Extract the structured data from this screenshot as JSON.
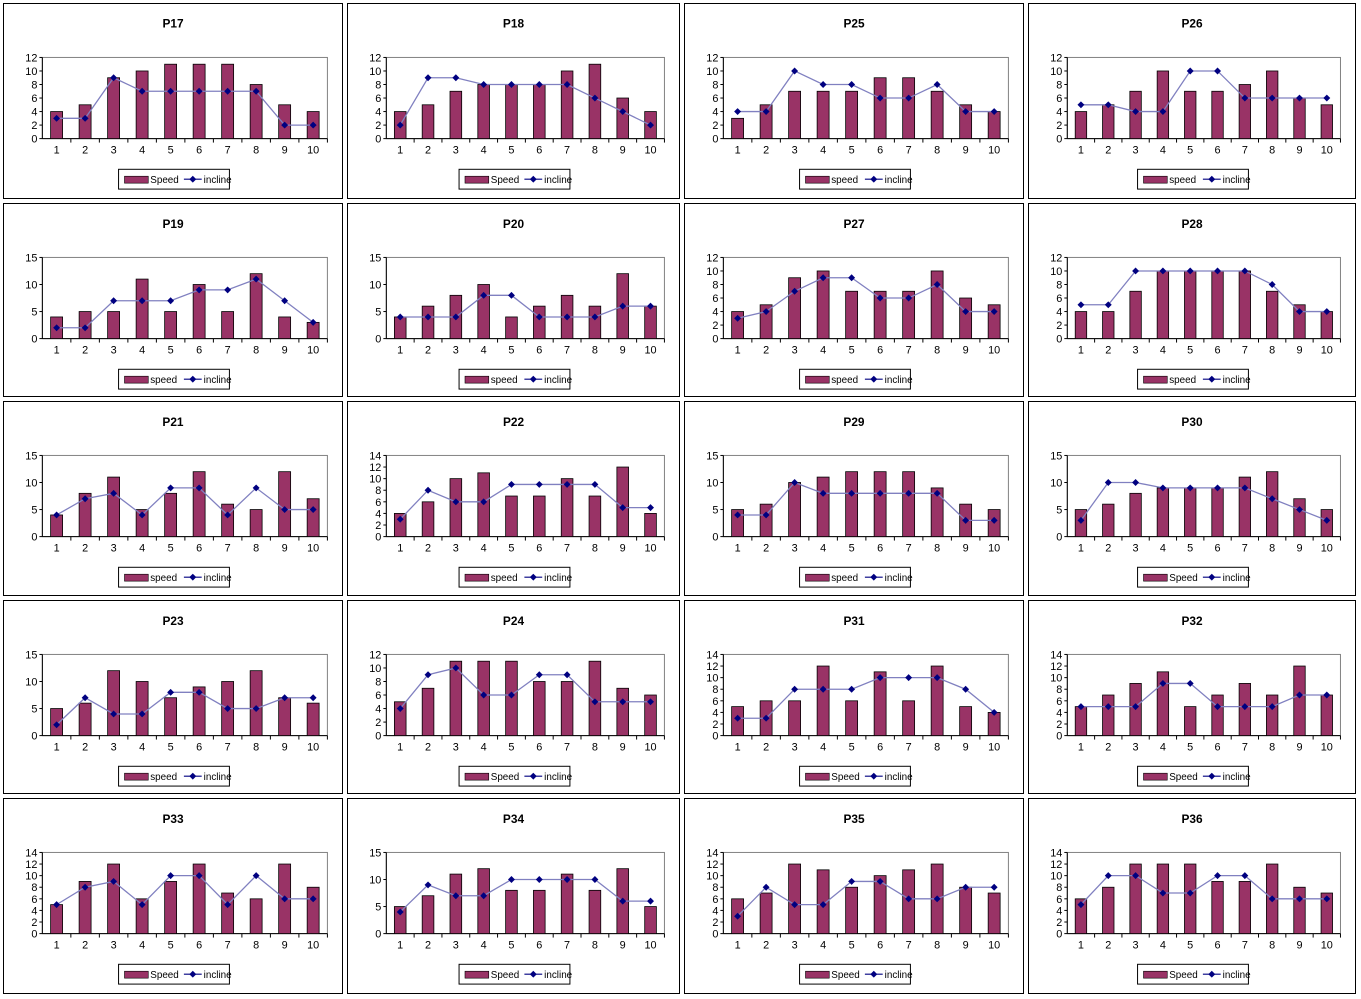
{
  "colors": {
    "speed": "#993366",
    "incline": "#000080",
    "incline_line": "#8080c0"
  },
  "chart_data": [
    {
      "type": "bar+line",
      "title": "P17",
      "categories": [
        1,
        2,
        3,
        4,
        5,
        6,
        7,
        8,
        9,
        10
      ],
      "ylim": [
        0,
        12
      ],
      "yticks": [
        0,
        2,
        4,
        6,
        8,
        10,
        12
      ],
      "legend": [
        "Speed",
        "incline"
      ],
      "series": [
        {
          "name": "Speed",
          "values": [
            4,
            5,
            9,
            10,
            11,
            11,
            11,
            8,
            5,
            4
          ]
        },
        {
          "name": "incline",
          "values": [
            3,
            3,
            9,
            7,
            7,
            7,
            7,
            7,
            2,
            2
          ]
        }
      ]
    },
    {
      "type": "bar+line",
      "title": "P18",
      "categories": [
        1,
        2,
        3,
        4,
        5,
        6,
        7,
        8,
        9,
        10
      ],
      "ylim": [
        0,
        12
      ],
      "yticks": [
        0,
        2,
        4,
        6,
        8,
        10,
        12
      ],
      "legend": [
        "Speed",
        "incline"
      ],
      "series": [
        {
          "name": "Speed",
          "values": [
            4,
            5,
            7,
            8,
            8,
            8,
            10,
            11,
            6,
            4
          ]
        },
        {
          "name": "incline",
          "values": [
            2,
            9,
            9,
            8,
            8,
            8,
            8,
            6,
            4,
            2
          ]
        }
      ]
    },
    {
      "type": "bar+line",
      "title": "P25",
      "categories": [
        1,
        2,
        3,
        4,
        5,
        6,
        7,
        8,
        9,
        10
      ],
      "ylim": [
        0,
        12
      ],
      "yticks": [
        0,
        2,
        4,
        6,
        8,
        10,
        12
      ],
      "legend": [
        "speed",
        "incline"
      ],
      "series": [
        {
          "name": "speed",
          "values": [
            3,
            5,
            7,
            7,
            7,
            9,
            9,
            7,
            5,
            4
          ]
        },
        {
          "name": "incline",
          "values": [
            4,
            4,
            10,
            8,
            8,
            6,
            6,
            8,
            4,
            4
          ]
        }
      ]
    },
    {
      "type": "bar+line",
      "title": "P26",
      "categories": [
        1,
        2,
        3,
        4,
        5,
        6,
        7,
        8,
        9,
        10
      ],
      "ylim": [
        0,
        12
      ],
      "yticks": [
        0,
        2,
        4,
        6,
        8,
        10,
        12
      ],
      "legend": [
        "speed",
        "incline"
      ],
      "series": [
        {
          "name": "speed",
          "values": [
            4,
            5,
            7,
            10,
            7,
            7,
            8,
            10,
            6,
            5
          ]
        },
        {
          "name": "incline",
          "values": [
            5,
            5,
            4,
            4,
            10,
            10,
            6,
            6,
            6,
            6
          ]
        }
      ]
    },
    {
      "type": "bar+line",
      "title": "P19",
      "categories": [
        1,
        2,
        3,
        4,
        5,
        6,
        7,
        8,
        9,
        10
      ],
      "ylim": [
        0,
        15
      ],
      "yticks": [
        0,
        5,
        10,
        15
      ],
      "legend": [
        "speed",
        "incline"
      ],
      "series": [
        {
          "name": "speed",
          "values": [
            4,
            5,
            5,
            11,
            5,
            10,
            5,
            12,
            4,
            3
          ]
        },
        {
          "name": "incline",
          "values": [
            2,
            2,
            7,
            7,
            7,
            9,
            9,
            11,
            7,
            3
          ]
        }
      ]
    },
    {
      "type": "bar+line",
      "title": "P20",
      "categories": [
        1,
        2,
        3,
        4,
        5,
        6,
        7,
        8,
        9,
        10
      ],
      "ylim": [
        0,
        15
      ],
      "yticks": [
        0,
        5,
        10,
        15
      ],
      "legend": [
        "speed",
        "incline"
      ],
      "series": [
        {
          "name": "speed",
          "values": [
            4,
            6,
            8,
            10,
            4,
            6,
            8,
            6,
            12,
            6
          ]
        },
        {
          "name": "incline",
          "values": [
            4,
            4,
            4,
            8,
            8,
            4,
            4,
            4,
            6,
            6
          ]
        }
      ]
    },
    {
      "type": "bar+line",
      "title": "P27",
      "categories": [
        1,
        2,
        3,
        4,
        5,
        6,
        7,
        8,
        9,
        10
      ],
      "ylim": [
        0,
        12
      ],
      "yticks": [
        0,
        2,
        4,
        6,
        8,
        10,
        12
      ],
      "legend": [
        "speed",
        "incline"
      ],
      "series": [
        {
          "name": "speed",
          "values": [
            4,
            5,
            9,
            10,
            7,
            7,
            7,
            10,
            6,
            5
          ]
        },
        {
          "name": "incline",
          "values": [
            3,
            4,
            7,
            9,
            9,
            6,
            6,
            8,
            4,
            4
          ]
        }
      ]
    },
    {
      "type": "bar+line",
      "title": "P28",
      "categories": [
        1,
        2,
        3,
        4,
        5,
        6,
        7,
        8,
        9,
        10
      ],
      "ylim": [
        0,
        12
      ],
      "yticks": [
        0,
        2,
        4,
        6,
        8,
        10,
        12
      ],
      "legend": [
        "speed",
        "incline"
      ],
      "series": [
        {
          "name": "speed",
          "values": [
            4,
            4,
            7,
            10,
            10,
            10,
            10,
            7,
            5,
            4
          ]
        },
        {
          "name": "incline",
          "values": [
            5,
            5,
            10,
            10,
            10,
            10,
            10,
            8,
            4,
            4
          ]
        }
      ]
    },
    {
      "type": "bar+line",
      "title": "P21",
      "categories": [
        1,
        2,
        3,
        4,
        5,
        6,
        7,
        8,
        9,
        10
      ],
      "ylim": [
        0,
        15
      ],
      "yticks": [
        0,
        5,
        10,
        15
      ],
      "legend": [
        "speed",
        "incline"
      ],
      "series": [
        {
          "name": "speed",
          "values": [
            4,
            8,
            11,
            5,
            8,
            12,
            6,
            5,
            12,
            7
          ]
        },
        {
          "name": "incline",
          "values": [
            4,
            7,
            8,
            4,
            9,
            9,
            4,
            9,
            5,
            5
          ]
        }
      ]
    },
    {
      "type": "bar+line",
      "title": "P22",
      "categories": [
        1,
        2,
        3,
        4,
        5,
        6,
        7,
        8,
        9,
        10
      ],
      "ylim": [
        0,
        14
      ],
      "yticks": [
        0,
        2,
        4,
        6,
        8,
        10,
        12,
        14
      ],
      "legend": [
        "speed",
        "incline"
      ],
      "series": [
        {
          "name": "speed",
          "values": [
            4,
            6,
            10,
            11,
            7,
            7,
            10,
            7,
            12,
            4
          ]
        },
        {
          "name": "incline",
          "values": [
            3,
            8,
            6,
            6,
            9,
            9,
            9,
            9,
            5,
            5
          ]
        }
      ]
    },
    {
      "type": "bar+line",
      "title": "P29",
      "categories": [
        1,
        2,
        3,
        4,
        5,
        6,
        7,
        8,
        9,
        10
      ],
      "ylim": [
        0,
        15
      ],
      "yticks": [
        0,
        5,
        10,
        15
      ],
      "legend": [
        "speed",
        "incline"
      ],
      "series": [
        {
          "name": "speed",
          "values": [
            5,
            6,
            10,
            11,
            12,
            12,
            12,
            9,
            6,
            5
          ]
        },
        {
          "name": "incline",
          "values": [
            4,
            4,
            10,
            8,
            8,
            8,
            8,
            8,
            3,
            3
          ]
        }
      ]
    },
    {
      "type": "bar+line",
      "title": "P30",
      "categories": [
        1,
        2,
        3,
        4,
        5,
        6,
        7,
        8,
        9,
        10
      ],
      "ylim": [
        0,
        15
      ],
      "yticks": [
        0,
        5,
        10,
        15
      ],
      "legend": [
        "Speed",
        "incline"
      ],
      "series": [
        {
          "name": "Speed",
          "values": [
            5,
            6,
            8,
            9,
            9,
            9,
            11,
            12,
            7,
            5
          ]
        },
        {
          "name": "incline",
          "values": [
            3,
            10,
            10,
            9,
            9,
            9,
            9,
            7,
            5,
            3
          ]
        }
      ]
    },
    {
      "type": "bar+line",
      "title": "P23",
      "categories": [
        1,
        2,
        3,
        4,
        5,
        6,
        7,
        8,
        9,
        10
      ],
      "ylim": [
        0,
        15
      ],
      "yticks": [
        0,
        5,
        10,
        15
      ],
      "legend": [
        "speed",
        "incline"
      ],
      "series": [
        {
          "name": "speed",
          "values": [
            5,
            6,
            12,
            10,
            7,
            9,
            10,
            12,
            7,
            6
          ]
        },
        {
          "name": "incline",
          "values": [
            2,
            7,
            4,
            4,
            8,
            8,
            5,
            5,
            7,
            7
          ]
        }
      ]
    },
    {
      "type": "bar+line",
      "title": "P24",
      "categories": [
        1,
        2,
        3,
        4,
        5,
        6,
        7,
        8,
        9,
        10
      ],
      "ylim": [
        0,
        12
      ],
      "yticks": [
        0,
        2,
        4,
        6,
        8,
        10,
        12
      ],
      "legend": [
        "Speed",
        "incline"
      ],
      "series": [
        {
          "name": "Speed",
          "values": [
            5,
            7,
            11,
            11,
            11,
            8,
            8,
            11,
            7,
            6
          ]
        },
        {
          "name": "incline",
          "values": [
            4,
            9,
            10,
            6,
            6,
            9,
            9,
            5,
            5,
            5
          ]
        }
      ]
    },
    {
      "type": "bar+line",
      "title": "P31",
      "categories": [
        1,
        2,
        3,
        4,
        5,
        6,
        7,
        8,
        9,
        10
      ],
      "ylim": [
        0,
        14
      ],
      "yticks": [
        0,
        2,
        4,
        6,
        8,
        10,
        12,
        14
      ],
      "legend": [
        "Speed",
        "incline"
      ],
      "series": [
        {
          "name": "Speed",
          "values": [
            5,
            6,
            6,
            12,
            6,
            11,
            6,
            12,
            5,
            4
          ]
        },
        {
          "name": "incline",
          "values": [
            3,
            3,
            8,
            8,
            8,
            10,
            10,
            10,
            8,
            4
          ]
        }
      ]
    },
    {
      "type": "bar+line",
      "title": "P32",
      "categories": [
        1,
        2,
        3,
        4,
        5,
        6,
        7,
        8,
        9,
        10
      ],
      "ylim": [
        0,
        14
      ],
      "yticks": [
        0,
        2,
        4,
        6,
        8,
        10,
        12,
        14
      ],
      "legend": [
        "Speed",
        "incline"
      ],
      "series": [
        {
          "name": "Speed",
          "values": [
            5,
            7,
            9,
            11,
            5,
            7,
            9,
            7,
            12,
            7
          ]
        },
        {
          "name": "incline",
          "values": [
            5,
            5,
            5,
            9,
            9,
            5,
            5,
            5,
            7,
            7
          ]
        }
      ]
    },
    {
      "type": "bar+line",
      "title": "P33",
      "categories": [
        1,
        2,
        3,
        4,
        5,
        6,
        7,
        8,
        9,
        10
      ],
      "ylim": [
        0,
        14
      ],
      "yticks": [
        0,
        2,
        4,
        6,
        8,
        10,
        12,
        14
      ],
      "legend": [
        "Speed",
        "incline"
      ],
      "series": [
        {
          "name": "Speed",
          "values": [
            5,
            9,
            12,
            6,
            9,
            12,
            7,
            6,
            12,
            8
          ]
        },
        {
          "name": "incline",
          "values": [
            5,
            8,
            9,
            5,
            10,
            10,
            5,
            10,
            6,
            6
          ]
        }
      ]
    },
    {
      "type": "bar+line",
      "title": "P34",
      "categories": [
        1,
        2,
        3,
        4,
        5,
        6,
        7,
        8,
        9,
        10
      ],
      "ylim": [
        0,
        15
      ],
      "yticks": [
        0,
        5,
        10,
        15
      ],
      "legend": [
        "Speed",
        "incline"
      ],
      "series": [
        {
          "name": "Speed",
          "values": [
            5,
            7,
            11,
            12,
            8,
            8,
            11,
            8,
            12,
            5
          ]
        },
        {
          "name": "incline",
          "values": [
            4,
            9,
            7,
            7,
            10,
            10,
            10,
            10,
            6,
            6
          ]
        }
      ]
    },
    {
      "type": "bar+line",
      "title": "P35",
      "categories": [
        1,
        2,
        3,
        4,
        5,
        6,
        7,
        8,
        9,
        10
      ],
      "ylim": [
        0,
        14
      ],
      "yticks": [
        0,
        2,
        4,
        6,
        8,
        10,
        12,
        14
      ],
      "legend": [
        "Speed",
        "incline"
      ],
      "series": [
        {
          "name": "Speed",
          "values": [
            6,
            7,
            12,
            11,
            8,
            10,
            11,
            12,
            8,
            7
          ]
        },
        {
          "name": "incline",
          "values": [
            3,
            8,
            5,
            5,
            9,
            9,
            6,
            6,
            8,
            8
          ]
        }
      ]
    },
    {
      "type": "bar+line",
      "title": "P36",
      "categories": [
        1,
        2,
        3,
        4,
        5,
        6,
        7,
        8,
        9,
        10
      ],
      "ylim": [
        0,
        14
      ],
      "yticks": [
        0,
        2,
        4,
        6,
        8,
        10,
        12,
        14
      ],
      "legend": [
        "Speed",
        "incline"
      ],
      "series": [
        {
          "name": "Speed",
          "values": [
            6,
            8,
            12,
            12,
            12,
            9,
            9,
            12,
            8,
            7
          ]
        },
        {
          "name": "incline",
          "values": [
            5,
            10,
            10,
            7,
            7,
            10,
            10,
            6,
            6,
            6
          ]
        }
      ]
    }
  ]
}
